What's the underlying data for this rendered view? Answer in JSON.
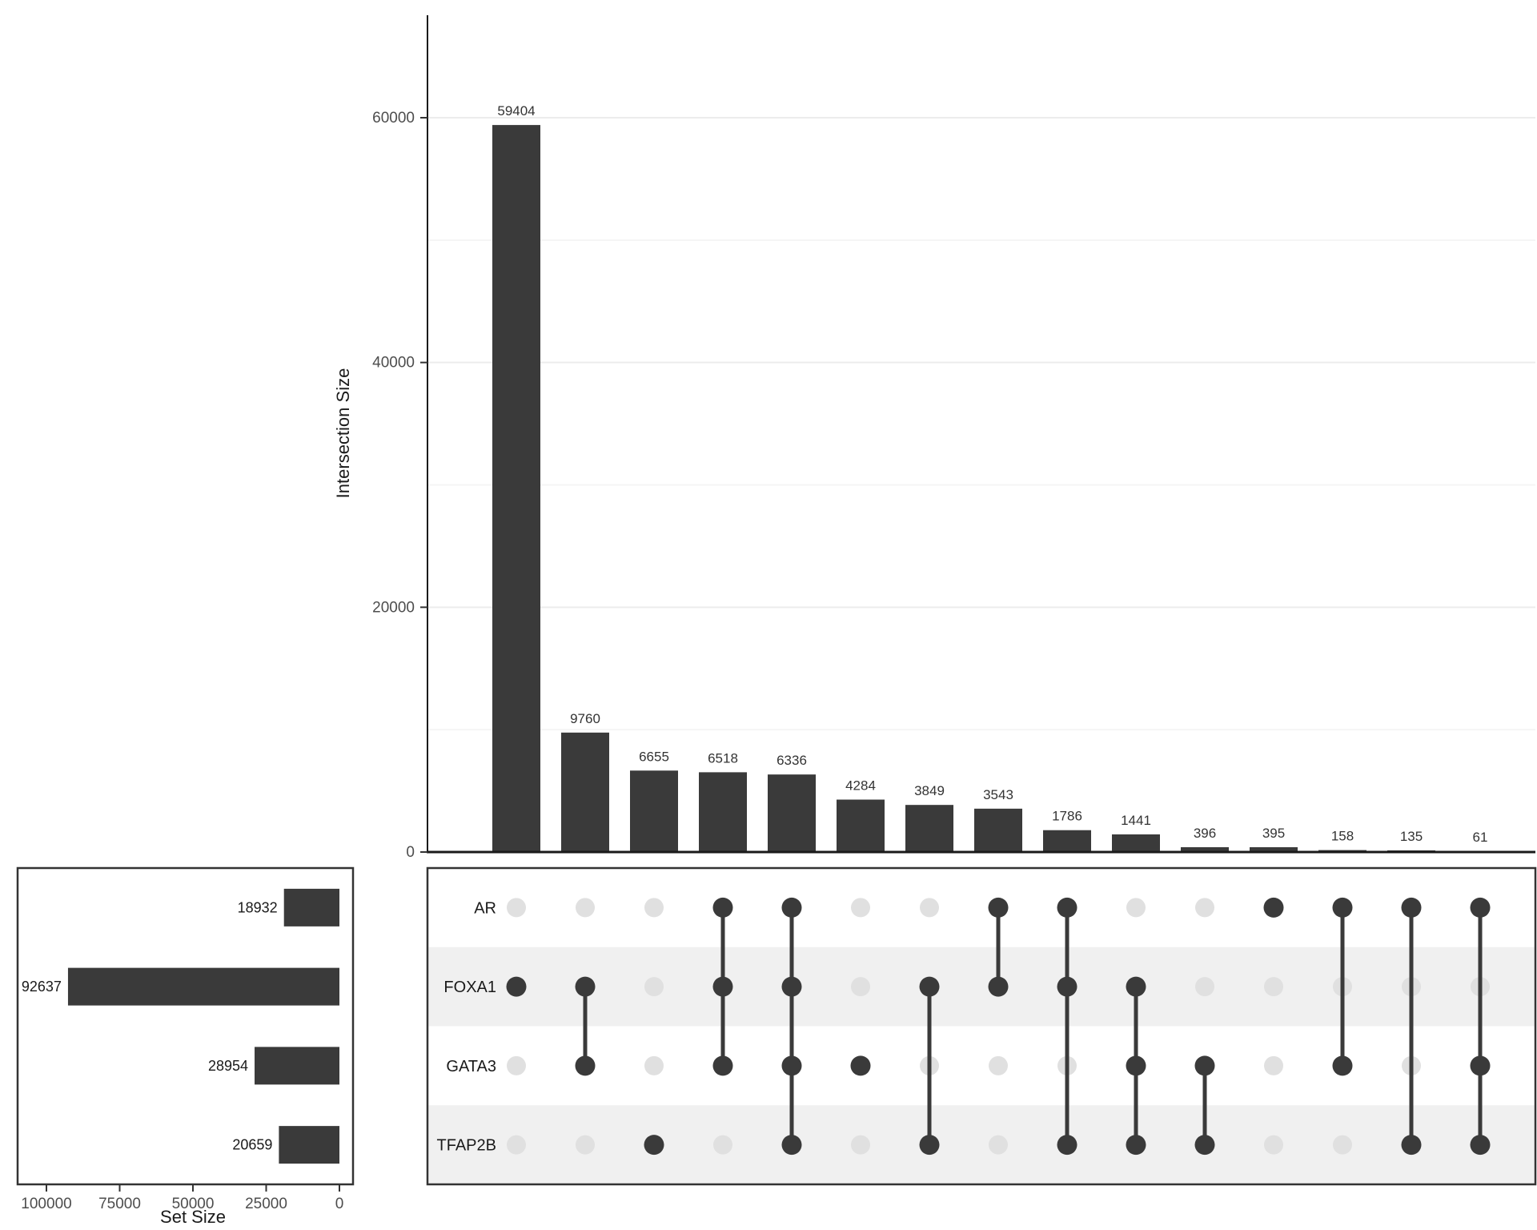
{
  "chart_data": {
    "type": "upset",
    "title": "",
    "intersection_axis": {
      "label": "Intersection Size",
      "ticks": [
        0,
        20000,
        40000,
        60000
      ],
      "max": 65000
    },
    "set_axis": {
      "label": "Set Size",
      "ticks": [
        100000,
        75000,
        50000,
        25000,
        0
      ],
      "max": 110000
    },
    "sets": [
      {
        "name": "AR",
        "size": 18932
      },
      {
        "name": "FOXA1",
        "size": 92637
      },
      {
        "name": "GATA3",
        "size": 28954
      },
      {
        "name": "TFAP2B",
        "size": 20659
      }
    ],
    "intersections": [
      {
        "value": 59404,
        "members": [
          "FOXA1"
        ]
      },
      {
        "value": 9760,
        "members": [
          "FOXA1",
          "GATA3"
        ]
      },
      {
        "value": 6655,
        "members": [
          "TFAP2B"
        ]
      },
      {
        "value": 6518,
        "members": [
          "AR",
          "FOXA1",
          "GATA3"
        ]
      },
      {
        "value": 6336,
        "members": [
          "AR",
          "FOXA1",
          "GATA3",
          "TFAP2B"
        ]
      },
      {
        "value": 4284,
        "members": [
          "GATA3"
        ]
      },
      {
        "value": 3849,
        "members": [
          "FOXA1",
          "TFAP2B"
        ]
      },
      {
        "value": 3543,
        "members": [
          "AR",
          "FOXA1"
        ]
      },
      {
        "value": 1786,
        "members": [
          "AR",
          "FOXA1",
          "TFAP2B"
        ]
      },
      {
        "value": 1441,
        "members": [
          "FOXA1",
          "GATA3",
          "TFAP2B"
        ]
      },
      {
        "value": 396,
        "members": [
          "GATA3",
          "TFAP2B"
        ]
      },
      {
        "value": 395,
        "members": [
          "AR"
        ]
      },
      {
        "value": 158,
        "members": [
          "AR",
          "GATA3"
        ]
      },
      {
        "value": 135,
        "members": [
          "AR",
          "TFAP2B"
        ]
      },
      {
        "value": 61,
        "members": [
          "AR",
          "GATA3",
          "TFAP2B"
        ]
      }
    ],
    "colors": {
      "bar": "#3a3a3a",
      "dot_active": "#3a3a3a",
      "dot_inactive": "#e0e0e0",
      "shading": "#f0f0f0",
      "grid_major": "#ececec",
      "grid_minor": "#f5f5f5",
      "axis_line": "#1a1a1a",
      "tick_text": "#4d4d4d",
      "label_text": "#1a1a1a"
    }
  }
}
